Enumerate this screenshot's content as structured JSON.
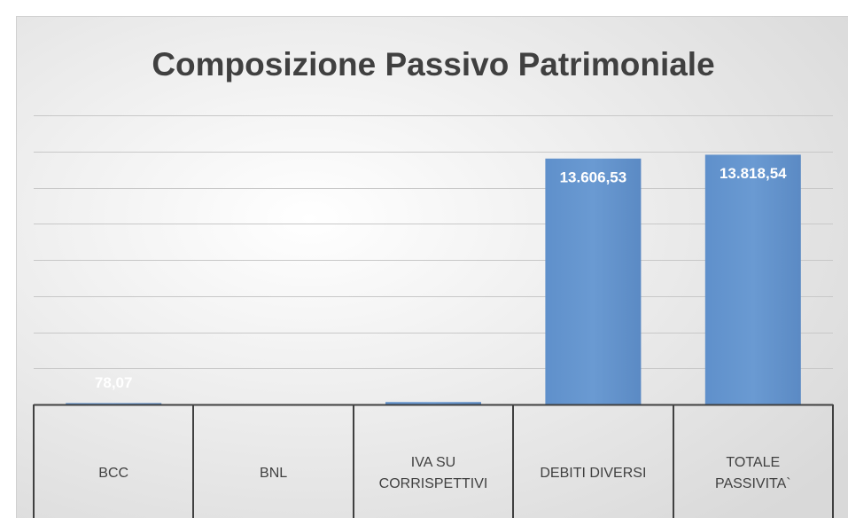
{
  "chart_data": {
    "type": "bar",
    "title": "Composizione Passivo Patrimoniale",
    "categories": [
      [
        "BCC"
      ],
      [
        "BNL"
      ],
      [
        "IVA SU",
        "CORRISPETTIVI"
      ],
      [
        "DEBITI DIVERSI"
      ],
      [
        "TOTALE",
        "PASSIVITA`"
      ]
    ],
    "values": [
      78.07,
      0,
      133.94,
      13606.53,
      13818.54
    ],
    "value_labels": [
      "78,07",
      null,
      null,
      "13.606,53",
      "13.818,54"
    ],
    "color": "#5b8ec9",
    "ylim": [
      0,
      16000
    ],
    "yticks": [
      0,
      2000,
      4000,
      6000,
      8000,
      10000,
      12000,
      14000,
      16000
    ],
    "grid": true
  }
}
